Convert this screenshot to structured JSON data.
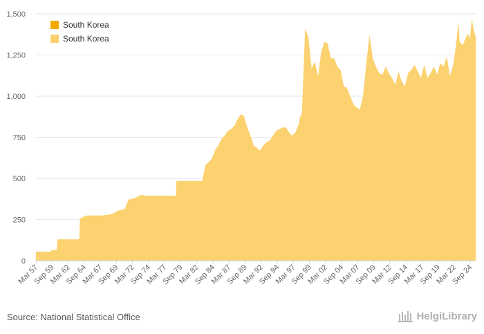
{
  "chart_data": {
    "type": "area",
    "title": "",
    "xlabel": "",
    "ylabel": "",
    "ylim": [
      0,
      1500
    ],
    "y_ticks": [
      0,
      250,
      500,
      750,
      "1,000",
      "1,250",
      "1,500"
    ],
    "y_tick_values": [
      0,
      250,
      500,
      750,
      1000,
      1250,
      1500
    ],
    "x_tick_labels": [
      "Mar 57",
      "Sep 59",
      "Mar 62",
      "Sep 64",
      "Mar 67",
      "Sep 69",
      "Mar 72",
      "Sep 74",
      "Mar 77",
      "Sep 79",
      "Mar 82",
      "Sep 84",
      "Mar 87",
      "Sep 89",
      "Mar 92",
      "Sep 94",
      "Mar 97",
      "Sep 99",
      "Mar 02",
      "Sep 04",
      "Mar 07",
      "Sep 09",
      "Mar 12",
      "Sep 14",
      "Mar 17",
      "Sep 19",
      "Mar 22",
      "Sep 24"
    ],
    "x_tick_years": [
      1957.17,
      1959.67,
      1962.17,
      1964.67,
      1967.17,
      1969.67,
      1972.17,
      1974.67,
      1977.17,
      1979.67,
      1982.17,
      1984.67,
      1987.17,
      1989.67,
      1992.17,
      1994.67,
      1997.17,
      1999.67,
      2002.17,
      2004.67,
      2007.17,
      2009.67,
      2012.17,
      2014.67,
      2017.17,
      2019.67,
      2022.17,
      2024.67
    ],
    "x_range": [
      1957.17,
      2025.5
    ],
    "grid": true,
    "legend_position": "top-left",
    "series": [
      {
        "name": "South Korea",
        "color": "#f4a900",
        "x": [],
        "values": []
      },
      {
        "name": "South Korea",
        "color": "#fbd26f",
        "x": [
          1957.17,
          1959.5,
          1959.6,
          1960.4,
          1960.5,
          1963.9,
          1964.0,
          1964.5,
          1965.0,
          1966.5,
          1967.5,
          1968.5,
          1969.0,
          1970.0,
          1970.5,
          1971.0,
          1971.5,
          1972.5,
          1973.5,
          1973.7,
          1974.0,
          1978.9,
          1979.0,
          1979.5,
          1980.0,
          1980.5,
          1981.0,
          1982.0,
          1983.0,
          1983.5,
          1984.5,
          1985.0,
          1985.5,
          1986.0,
          1986.5,
          1987.0,
          1987.5,
          1988.0,
          1988.5,
          1989.0,
          1989.5,
          1990.0,
          1990.5,
          1991.0,
          1992.0,
          1992.5,
          1993.0,
          1993.5,
          1994.0,
          1994.5,
          1995.0,
          1995.5,
          1996.0,
          1996.5,
          1997.0,
          1997.5,
          1998.0,
          1998.2,
          1998.5,
          1999.0,
          1999.5,
          2000.0,
          2000.5,
          2001.0,
          2001.5,
          2002.0,
          2002.5,
          2003.0,
          2003.5,
          2004.0,
          2004.5,
          2005.0,
          2005.5,
          2006.0,
          2006.5,
          2007.0,
          2007.5,
          2008.0,
          2008.5,
          2009.0,
          2009.5,
          2010.0,
          2010.5,
          2011.0,
          2011.5,
          2012.0,
          2012.5,
          2013.0,
          2013.5,
          2014.0,
          2014.5,
          2015.0,
          2015.5,
          2016.0,
          2016.5,
          2017.0,
          2017.5,
          2018.0,
          2018.5,
          2019.0,
          2019.5,
          2020.0,
          2020.5,
          2021.0,
          2021.5,
          2022.0,
          2022.5,
          2022.8,
          2023.0,
          2023.5,
          2024.0,
          2024.3,
          2024.6,
          2024.9,
          2025.2,
          2025.5
        ],
        "values": [
          55,
          55,
          65,
          65,
          130,
          130,
          255,
          265,
          275,
          275,
          275,
          280,
          285,
          305,
          310,
          315,
          370,
          380,
          400,
          400,
          395,
          395,
          485,
          485,
          485,
          485,
          485,
          485,
          485,
          580,
          620,
          670,
          700,
          740,
          760,
          790,
          800,
          820,
          860,
          890,
          880,
          810,
          760,
          700,
          670,
          700,
          720,
          730,
          760,
          790,
          800,
          810,
          810,
          780,
          760,
          780,
          830,
          870,
          900,
          1410,
          1360,
          1170,
          1210,
          1120,
          1270,
          1330,
          1320,
          1230,
          1230,
          1180,
          1160,
          1060,
          1050,
          1000,
          950,
          930,
          920,
          1000,
          1200,
          1370,
          1230,
          1180,
          1140,
          1130,
          1180,
          1140,
          1110,
          1070,
          1150,
          1090,
          1060,
          1140,
          1160,
          1190,
          1150,
          1110,
          1190,
          1110,
          1140,
          1180,
          1130,
          1200,
          1180,
          1240,
          1120,
          1190,
          1330,
          1460,
          1330,
          1310,
          1360,
          1380,
          1350,
          1470,
          1400,
          1360
        ]
      }
    ]
  },
  "footer": {
    "source": "Source: National Statistical Office",
    "brand": "HelgiLibrary"
  }
}
